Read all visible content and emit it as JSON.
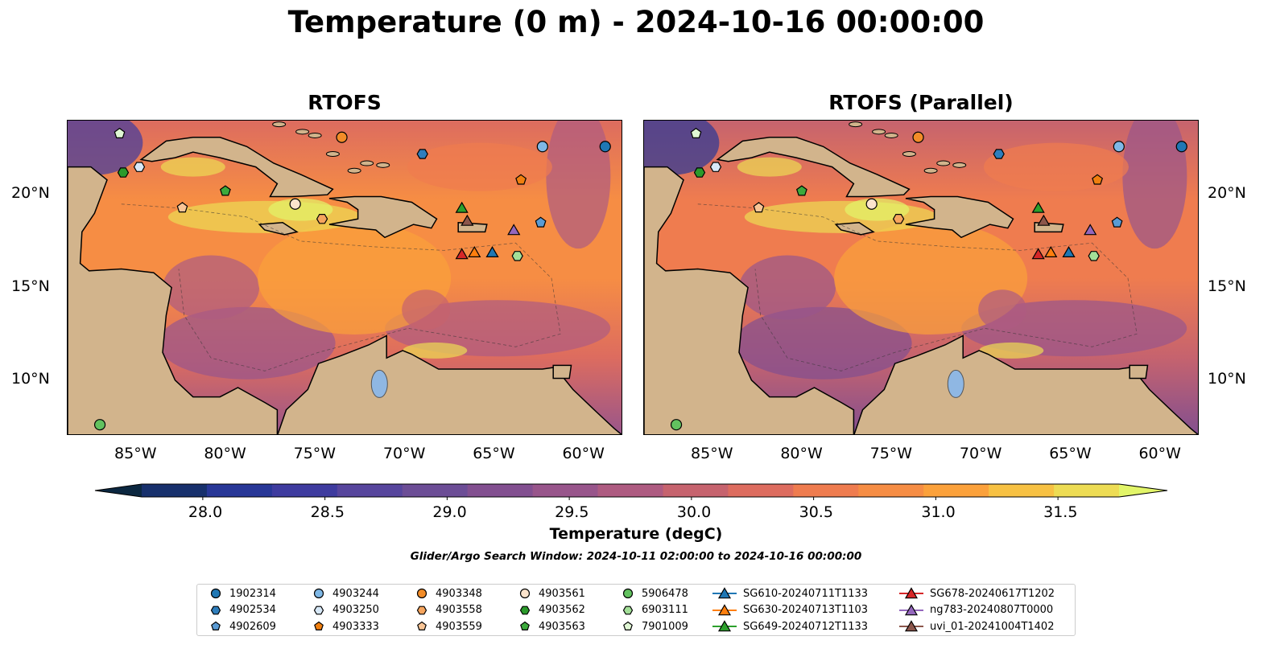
{
  "title": "Temperature (0 m) - 2024-10-16 00:00:00",
  "panels": [
    {
      "title": "RTOFS"
    },
    {
      "title": "RTOFS (Parallel)"
    }
  ],
  "map_axes": {
    "lon_range": [
      -89,
      -58
    ],
    "lat_range": [
      7,
      24
    ],
    "lon_ticks": [
      "85°W",
      "80°W",
      "75°W",
      "70°W",
      "65°W",
      "60°W"
    ],
    "lat_ticks": [
      "20°N",
      "15°N",
      "10°N"
    ]
  },
  "colorbar": {
    "label": "Temperature (degC)",
    "min": 27.75,
    "max": 31.75,
    "tick_labels": [
      "28.0",
      "28.5",
      "29.0",
      "29.5",
      "30.0",
      "30.5",
      "31.0",
      "31.5"
    ],
    "colors": [
      "#0b2740",
      "#17306c",
      "#283797",
      "#3e3b9f",
      "#57459d",
      "#6c4d96",
      "#824f90",
      "#98558b",
      "#ae5b81",
      "#c6636e",
      "#dd6c5f",
      "#ef7c4f",
      "#f68d44",
      "#fba13b",
      "#f7c143",
      "#eddc54",
      "#e2f569"
    ]
  },
  "search_window_text": "Glider/Argo Search Window: 2024-10-11 02:00:00 to 2024-10-16 00:00:00",
  "legend": {
    "items": [
      {
        "label": "1902314",
        "marker": "circle",
        "color": "#1f77b4"
      },
      {
        "label": "4902534",
        "marker": "hexagon",
        "color": "#2f7ebc"
      },
      {
        "label": "4902609",
        "marker": "pentagon",
        "color": "#5a9bd4"
      },
      {
        "label": "4903244",
        "marker": "circle",
        "color": "#7fb8e6"
      },
      {
        "label": "4903250",
        "marker": "hexagon",
        "color": "#d7e8f7"
      },
      {
        "label": "4903333",
        "marker": "pentagon",
        "color": "#f07f0f"
      },
      {
        "label": "4903348",
        "marker": "circle",
        "color": "#f28c28"
      },
      {
        "label": "4903558",
        "marker": "hexagon",
        "color": "#f6a55e"
      },
      {
        "label": "4903559",
        "marker": "pentagon",
        "color": "#f9c596"
      },
      {
        "label": "4903561",
        "marker": "circle",
        "color": "#fce4cc"
      },
      {
        "label": "4903562",
        "marker": "hexagon",
        "color": "#2b9a2b"
      },
      {
        "label": "4903563",
        "marker": "pentagon",
        "color": "#3caa3c"
      },
      {
        "label": "5906478",
        "marker": "circle",
        "color": "#62c25f"
      },
      {
        "label": "6903111",
        "marker": "hexagon",
        "color": "#a3df98"
      },
      {
        "label": "7901009",
        "marker": "pentagon",
        "color": "#e0f7d4"
      },
      {
        "label": "SG610-20240711T1133",
        "marker": "triangle",
        "color": "#1f77b4"
      },
      {
        "label": "SG630-20240713T1103",
        "marker": "triangle",
        "color": "#ff7f0e"
      },
      {
        "label": "SG649-20240712T1133",
        "marker": "triangle",
        "color": "#2ca02c"
      },
      {
        "label": "SG678-20240617T1202",
        "marker": "triangle",
        "color": "#d62728"
      },
      {
        "label": "ng783-20240807T0000",
        "marker": "triangle",
        "color": "#9467bd"
      },
      {
        "label": "uvi_01-20241004T1402",
        "marker": "triangle",
        "color": "#8c564b"
      }
    ]
  },
  "chart_data": {
    "type": "map",
    "variable": "Temperature",
    "depth": "0 m",
    "time": "2024-10-16 00:00:00",
    "units": "degC",
    "color_range": [
      28.0,
      31.5
    ],
    "observations": [
      {
        "id": "1902314",
        "lon": -59.0,
        "lat": 22.6
      },
      {
        "id": "4902534",
        "lon": -69.2,
        "lat": 22.2
      },
      {
        "id": "4902609",
        "lon": -62.6,
        "lat": 18.5
      },
      {
        "id": "4903244",
        "lon": -62.5,
        "lat": 22.6
      },
      {
        "id": "4903250",
        "lon": -85.0,
        "lat": 21.5
      },
      {
        "id": "4903333",
        "lon": -63.7,
        "lat": 20.8
      },
      {
        "id": "4903348",
        "lon": -73.7,
        "lat": 23.1
      },
      {
        "id": "4903558",
        "lon": -74.8,
        "lat": 18.7
      },
      {
        "id": "4903559",
        "lon": -82.6,
        "lat": 19.3
      },
      {
        "id": "4903561",
        "lon": -76.3,
        "lat": 19.5
      },
      {
        "id": "4903562",
        "lon": -85.9,
        "lat": 21.2
      },
      {
        "id": "4903563",
        "lon": -80.2,
        "lat": 20.2
      },
      {
        "id": "5906478",
        "lon": -87.2,
        "lat": 7.6
      },
      {
        "id": "6903111",
        "lon": -63.9,
        "lat": 16.7
      },
      {
        "id": "7901009",
        "lon": -86.1,
        "lat": 23.3
      },
      {
        "id": "SG610-20240711T1133",
        "lon": -65.3,
        "lat": 16.9
      },
      {
        "id": "SG630-20240713T1103",
        "lon": -66.3,
        "lat": 16.9
      },
      {
        "id": "SG649-20240712T1133",
        "lon": -67.0,
        "lat": 19.3
      },
      {
        "id": "SG678-20240617T1202",
        "lon": -67.0,
        "lat": 16.8
      },
      {
        "id": "ng783-20240807T0000",
        "lon": -64.1,
        "lat": 18.1
      },
      {
        "id": "uvi_01-20241004T1402",
        "lon": -66.7,
        "lat": 18.6
      }
    ]
  }
}
